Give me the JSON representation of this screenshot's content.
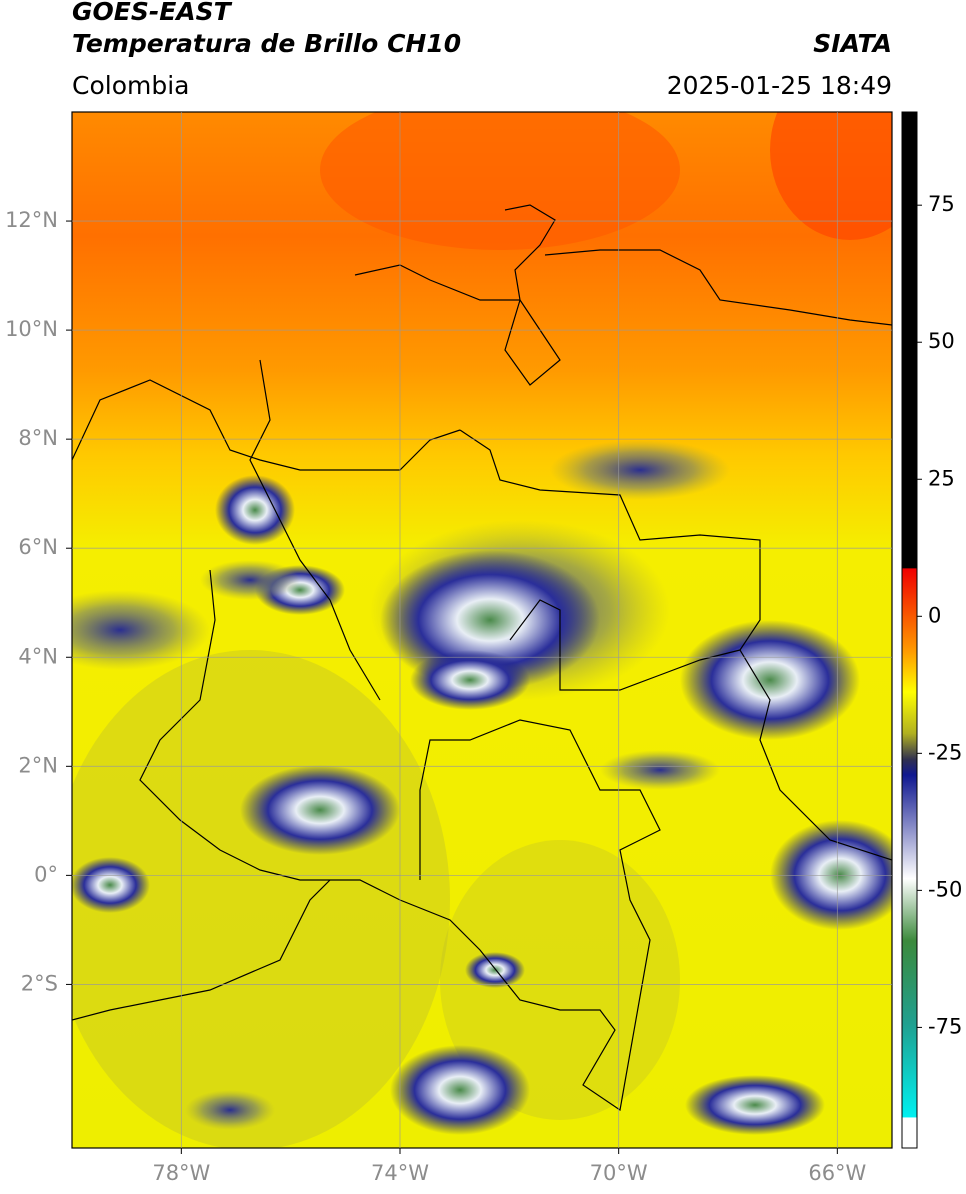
{
  "header": {
    "title": "GOES-EAST",
    "subtitle": "Temperatura de Brillo CH10",
    "region": "Colombia",
    "source": "SIATA",
    "datetime": "2025-01-25 18:49"
  },
  "map": {
    "xlim": [
      -80,
      -65
    ],
    "ylim": [
      -5,
      14
    ],
    "xticks": [
      {
        "value": -78,
        "label": "78°W"
      },
      {
        "value": -74,
        "label": "74°W"
      },
      {
        "value": -70,
        "label": "70°W"
      },
      {
        "value": -66,
        "label": "66°W"
      }
    ],
    "yticks": [
      {
        "value": 12,
        "label": "12°N"
      },
      {
        "value": 10,
        "label": "10°N"
      },
      {
        "value": 8,
        "label": "8°N"
      },
      {
        "value": 6,
        "label": "6°N"
      },
      {
        "value": 4,
        "label": "4°N"
      },
      {
        "value": 2,
        "label": "2°N"
      },
      {
        "value": 0,
        "label": "0°"
      },
      {
        "value": -2,
        "label": "2°S"
      }
    ],
    "grid": true
  },
  "colorbar": {
    "lim": [
      -97,
      92
    ],
    "ticks": [
      75,
      50,
      25,
      0,
      -25,
      -50,
      -75
    ]
  }
}
